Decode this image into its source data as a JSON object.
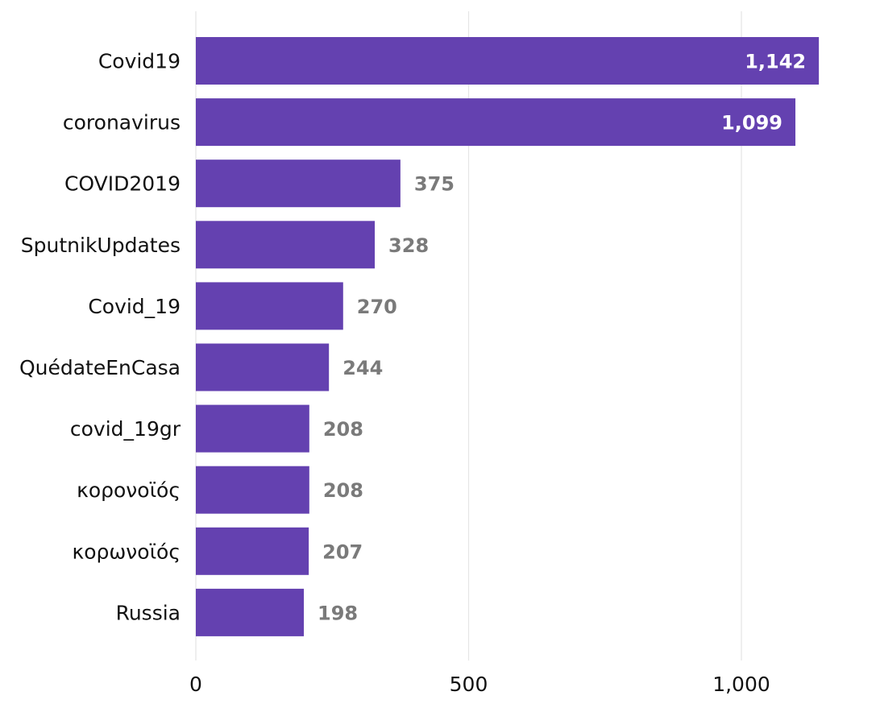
{
  "chart_data": {
    "type": "bar",
    "orientation": "horizontal",
    "title": "",
    "xlabel": "",
    "ylabel": "",
    "categories": [
      "Covid19",
      "coronavirus",
      "COVID2019",
      "SputnikUpdates",
      "Covid_19",
      "QuédateEnCasa",
      "covid_19gr",
      "κορονοϊός",
      "κορωνοϊός",
      "Russia"
    ],
    "values": [
      1142,
      1099,
      375,
      328,
      270,
      244,
      208,
      208,
      207,
      198
    ],
    "value_labels": [
      "1,142",
      "1,099",
      "375",
      "328",
      "270",
      "244",
      "208",
      "208",
      "207",
      "198"
    ],
    "xlim": [
      0,
      1150
    ],
    "x_ticks": [
      0,
      500,
      1000
    ],
    "x_tick_labels": [
      "0",
      "500",
      "1,000"
    ],
    "grid": "vertical",
    "legend": "none",
    "colors": {
      "bar": "#6441b0",
      "label_inside": "#ffffff",
      "label_outside": "#7a7a7a",
      "grid": "#e6e6e6",
      "text": "#111111"
    }
  }
}
